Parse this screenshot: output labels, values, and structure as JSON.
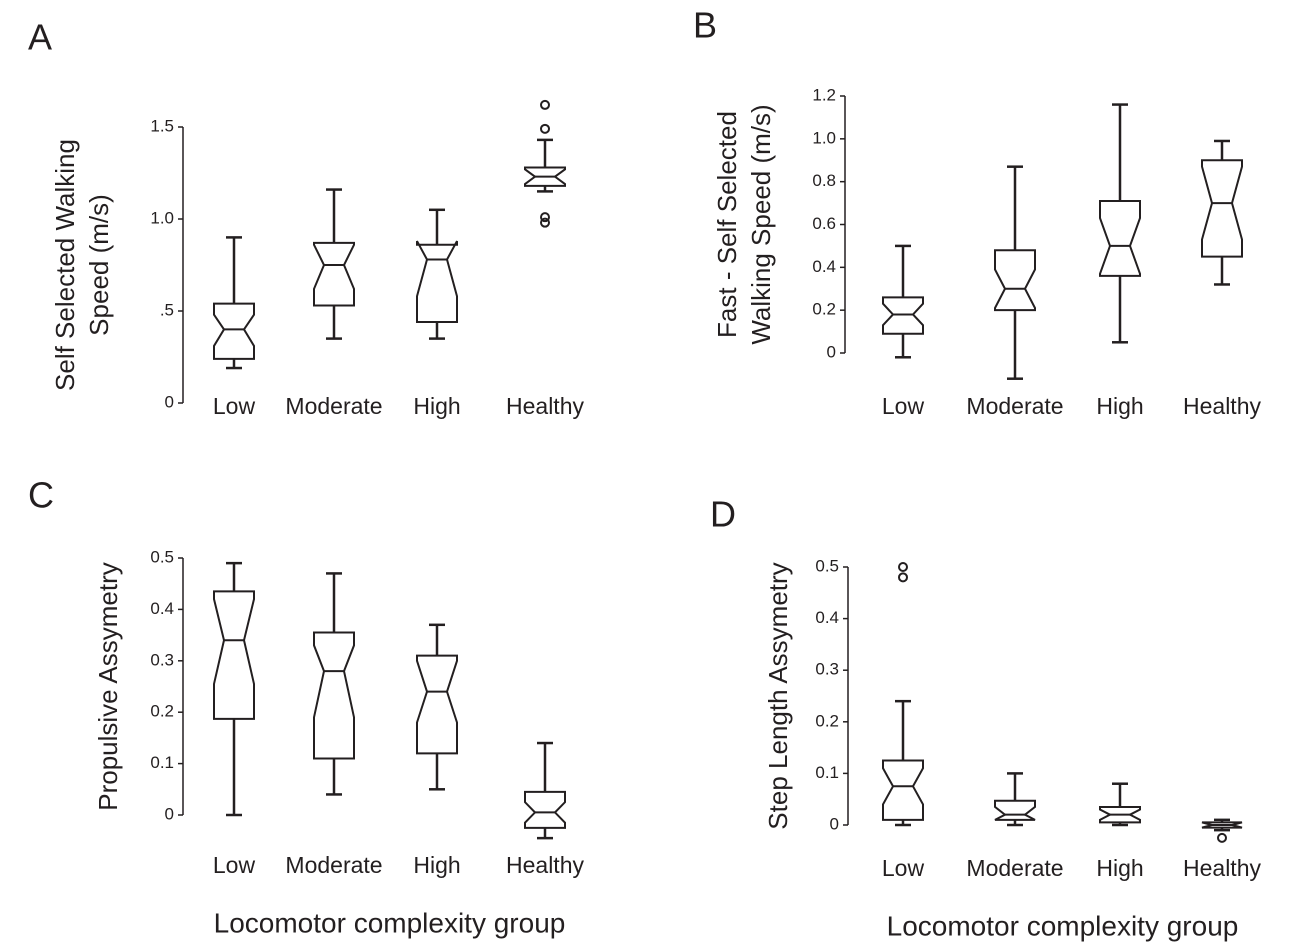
{
  "chart_data": [
    {
      "type": "box",
      "panel": "A",
      "ylabel": [
        "Self Selected Walking",
        "Speed (m/s)"
      ],
      "categories": [
        "Low",
        "Moderate",
        "High",
        "Healthy"
      ],
      "ylim": [
        0,
        1.5
      ],
      "yticks": [
        0,
        {
          "value": 0.5,
          "label": ".5"
        },
        {
          "value": 1,
          "label": "1.0"
        },
        1.5
      ],
      "boxes": [
        {
          "whislo": 0.19,
          "q1": 0.24,
          "notch": [
            0.31,
            0.48
          ],
          "med": 0.4,
          "q3": 0.54,
          "whishi": 0.9,
          "fliers": []
        },
        {
          "whislo": 0.35,
          "q1": 0.53,
          "notch": [
            0.62,
            0.86
          ],
          "med": 0.75,
          "q3": 0.87,
          "whishi": 1.16,
          "fliers": []
        },
        {
          "whislo": 0.35,
          "q1": 0.44,
          "notch": [
            0.58,
            0.88
          ],
          "med": 0.78,
          "q3": 0.86,
          "whishi": 1.05,
          "fliers": []
        },
        {
          "whislo": 1.15,
          "q1": 1.18,
          "notch": [
            1.19,
            1.27
          ],
          "med": 1.23,
          "q3": 1.28,
          "whishi": 1.43,
          "fliers": [
            1.62,
            1.49,
            1.01,
            0.98
          ]
        }
      ]
    },
    {
      "type": "box",
      "panel": "B",
      "ylabel": [
        "Fast - Self Selected",
        "Walking Speed (m/s)"
      ],
      "categories": [
        "Low",
        "Moderate",
        "High",
        "Healthy"
      ],
      "ylim": [
        0,
        1.2
      ],
      "yticks": [
        0,
        0.2,
        0.4,
        0.6,
        0.8,
        {
          "value": 1,
          "label": "1.0"
        },
        1.2
      ],
      "boxes": [
        {
          "whislo": -0.02,
          "q1": 0.09,
          "notch": [
            0.13,
            0.23
          ],
          "med": 0.18,
          "q3": 0.26,
          "whishi": 0.5,
          "fliers": []
        },
        {
          "whislo": -0.12,
          "q1": 0.2,
          "notch": [
            0.21,
            0.39
          ],
          "med": 0.3,
          "q3": 0.48,
          "whishi": 0.87,
          "fliers": []
        },
        {
          "whislo": 0.05,
          "q1": 0.36,
          "notch": [
            0.37,
            0.63
          ],
          "med": 0.5,
          "q3": 0.71,
          "whishi": 1.16,
          "fliers": []
        },
        {
          "whislo": 0.32,
          "q1": 0.45,
          "notch": [
            0.53,
            0.87
          ],
          "med": 0.7,
          "q3": 0.9,
          "whishi": 0.99,
          "fliers": []
        }
      ]
    },
    {
      "type": "box",
      "panel": "C",
      "ylabel": [
        "Propulsive Assymetry"
      ],
      "xlabel": "Locomotor complexity group",
      "categories": [
        "Low",
        "Moderate",
        "High",
        "Healthy"
      ],
      "ylim": [
        0,
        0.5
      ],
      "yticks": [
        0,
        0.1,
        0.2,
        0.3,
        0.4,
        0.5
      ],
      "boxes": [
        {
          "whislo": 0,
          "q1": 0.187,
          "notch": [
            0.255,
            0.42
          ],
          "med": 0.34,
          "q3": 0.435,
          "whishi": 0.49,
          "fliers": []
        },
        {
          "whislo": 0.04,
          "q1": 0.11,
          "notch": [
            0.19,
            0.33
          ],
          "med": 0.28,
          "q3": 0.355,
          "whishi": 0.47,
          "fliers": []
        },
        {
          "whislo": 0.05,
          "q1": 0.12,
          "notch": [
            0.18,
            0.3
          ],
          "med": 0.24,
          "q3": 0.31,
          "whishi": 0.37,
          "fliers": []
        },
        {
          "whislo": -0.045,
          "q1": -0.025,
          "notch": [
            -0.015,
            0.025
          ],
          "med": 0.005,
          "q3": 0.045,
          "whishi": 0.14,
          "fliers": []
        }
      ]
    },
    {
      "type": "box",
      "panel": "D",
      "ylabel": [
        "Step Length Assymetry"
      ],
      "xlabel": "Locomotor complexity group",
      "categories": [
        "Low",
        "Moderate",
        "High",
        "Healthy"
      ],
      "ylim": [
        0,
        0.5
      ],
      "yticks": [
        0,
        0.1,
        0.2,
        0.3,
        0.4,
        0.5
      ],
      "boxes": [
        {
          "whislo": 0,
          "q1": 0.01,
          "notch": [
            0.04,
            0.11
          ],
          "med": 0.075,
          "q3": 0.125,
          "whishi": 0.24,
          "fliers": [
            0.5,
            0.48
          ]
        },
        {
          "whislo": 0,
          "q1": 0.01,
          "notch": [
            0.01,
            0.035
          ],
          "med": 0.02,
          "q3": 0.047,
          "whishi": 0.1,
          "fliers": []
        },
        {
          "whislo": 0,
          "q1": 0.005,
          "notch": [
            0.01,
            0.03
          ],
          "med": 0.02,
          "q3": 0.035,
          "whishi": 0.08,
          "fliers": []
        },
        {
          "whislo": -0.01,
          "q1": -0.005,
          "notch": [
            -0.005,
            0.005
          ],
          "med": 0,
          "q3": 0.005,
          "whishi": 0.01,
          "fliers": [
            -0.025
          ]
        }
      ]
    }
  ]
}
